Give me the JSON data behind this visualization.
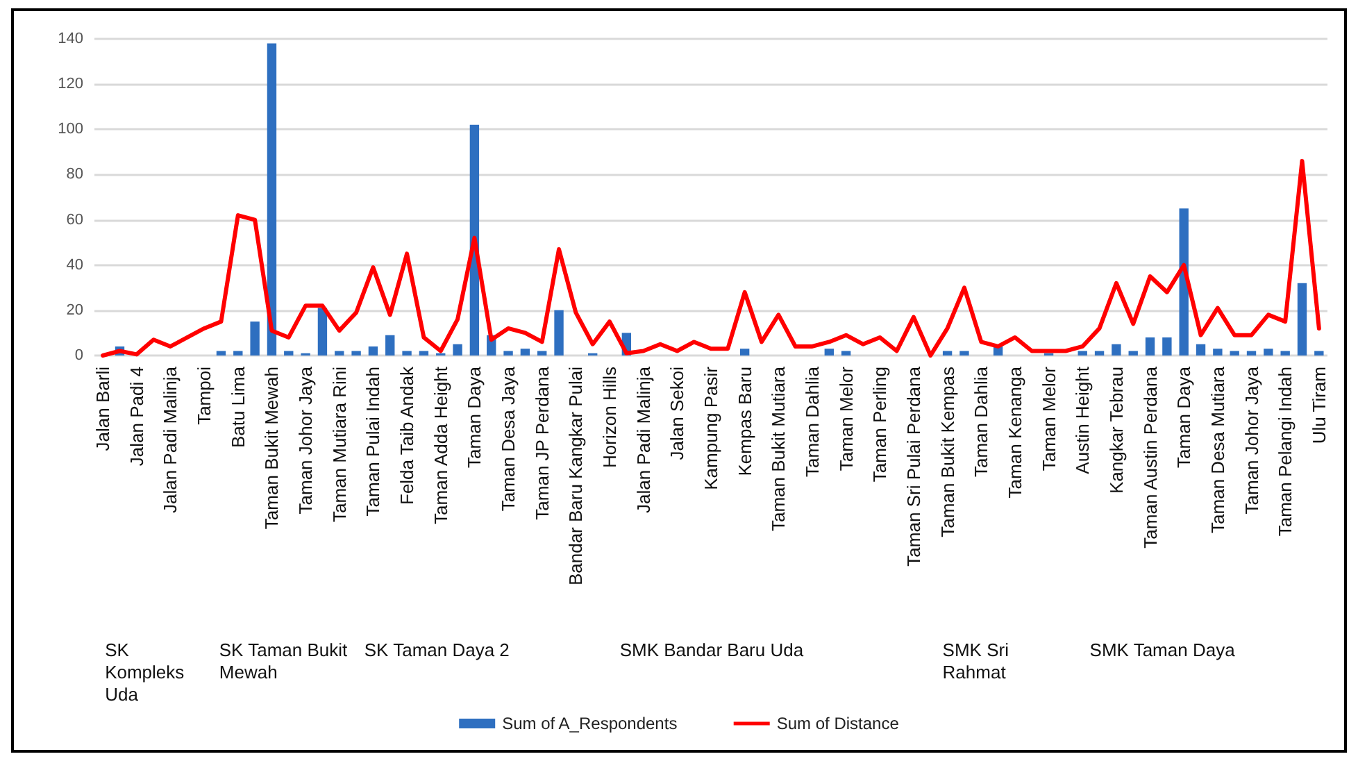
{
  "chart_data": {
    "type": "bar",
    "categories": [
      "Jalan Barli",
      null,
      "Jalan Padi 4",
      null,
      "Jalan Padi Malinja",
      null,
      "Tampoi",
      null,
      "Batu Lima",
      null,
      "Taman Bukit Mewah",
      null,
      "Taman Johor Jaya",
      null,
      "Taman Mutiara Rini",
      null,
      "Taman Pulai Indah",
      null,
      "Felda Taib Andak",
      null,
      "Taman Adda Height",
      null,
      "Taman Daya",
      null,
      "Taman Desa Jaya",
      null,
      "Taman JP Perdana",
      null,
      "Bandar Baru Kangkar Pulai",
      null,
      "Horizon Hills",
      null,
      "Jalan Padi Malinja",
      null,
      "Jalan Sekoi",
      null,
      "Kampung Pasir",
      null,
      "Kempas Baru",
      null,
      "Taman Bukit Mutiara",
      null,
      "Taman Dahlia",
      null,
      "Taman Melor",
      null,
      "Taman Perling",
      null,
      "Taman Sri Pulai Perdana",
      null,
      "Taman Bukit Kempas",
      null,
      "Taman Dahlia",
      null,
      "Taman Kenanga",
      null,
      "Taman Melor",
      null,
      "Austin Height",
      null,
      "Kangkar Tebrau",
      null,
      "Taman Austin Perdana",
      null,
      "Taman Daya",
      null,
      "Taman Desa Mutiara",
      null,
      "Taman Johor Jaya",
      null,
      "Taman Pelangi Indah",
      null,
      "Ulu Tiram"
    ],
    "series": [
      {
        "name": "Sum of A_Respondents",
        "color": "#2e6fc0",
        "values": [
          null,
          4,
          null,
          null,
          null,
          null,
          null,
          2,
          2,
          15,
          138,
          2,
          1,
          21,
          2,
          2,
          4,
          9,
          2,
          2,
          1,
          5,
          102,
          9,
          2,
          3,
          2,
          20,
          null,
          1,
          null,
          10,
          null,
          null,
          null,
          null,
          null,
          null,
          3,
          null,
          null,
          null,
          null,
          3,
          2,
          null,
          null,
          null,
          null,
          null,
          2,
          2,
          null,
          4,
          null,
          null,
          1,
          null,
          2,
          2,
          5,
          2,
          8,
          8,
          65,
          5,
          3,
          2,
          2,
          3,
          2,
          32,
          2
        ]
      },
      {
        "name": "Sum of Distance",
        "type": "line",
        "color": "#ff0000",
        "values": [
          0,
          2,
          0.5,
          7,
          4,
          8,
          12,
          15,
          62,
          60,
          11,
          8,
          22,
          22,
          11,
          19,
          39,
          18,
          45,
          8,
          2,
          16,
          52,
          7,
          12,
          10,
          6,
          47,
          19,
          5,
          15,
          1,
          2,
          5,
          2,
          6,
          3,
          3,
          28,
          6,
          18,
          4,
          4,
          6,
          9,
          5,
          8,
          2,
          17,
          0,
          12,
          30,
          6,
          4,
          8,
          2,
          2,
          2,
          4,
          12,
          32,
          14,
          35,
          28,
          40,
          9,
          21,
          9,
          9,
          18,
          15,
          86,
          12
        ]
      }
    ],
    "ylim": [
      0,
      140
    ],
    "yticks": [
      0,
      20,
      40,
      60,
      80,
      100,
      120,
      140
    ],
    "grid": "y",
    "legend": "bottom",
    "marker": "none",
    "line_style": "solid",
    "annotations": [
      "SK Kompleks Uda",
      "SK Taman Bukit Mewah",
      "SK Taman Daya 2",
      "SMK Bandar Baru Uda",
      "SMK Sri Rahmat",
      "SMK Taman Daya"
    ]
  }
}
